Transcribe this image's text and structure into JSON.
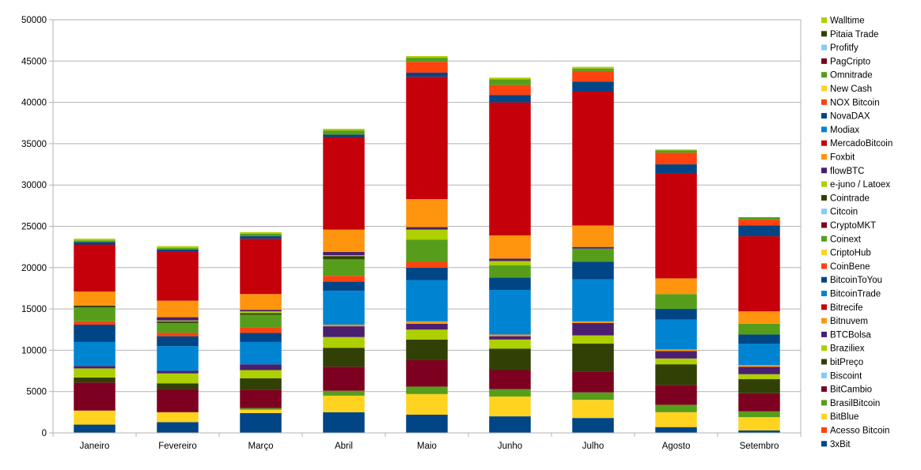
{
  "chart_data": {
    "type": "bar",
    "stacked": true,
    "title": "",
    "xlabel": "",
    "ylabel": "",
    "ylim": [
      0,
      50000
    ],
    "yticks": [
      0,
      5000,
      10000,
      15000,
      20000,
      25000,
      30000,
      35000,
      40000,
      45000,
      50000
    ],
    "grid": true,
    "legend_position": "right",
    "categories": [
      "Janeiro",
      "Fevereiro",
      "Março",
      "Abril",
      "Maio",
      "Junho",
      "Julho",
      "Agosto",
      "Setembro"
    ],
    "series": [
      {
        "name": "3xBit",
        "color": "#004586",
        "values": [
          1000,
          1300,
          2400,
          2500,
          2200,
          2000,
          1800,
          700,
          300
        ]
      },
      {
        "name": "Acesso Bitcoin",
        "color": "#ff420e",
        "values": [
          0,
          0,
          0,
          0,
          0,
          0,
          0,
          0,
          0
        ]
      },
      {
        "name": "BitBlue",
        "color": "#ffd320",
        "values": [
          1700,
          1200,
          400,
          2000,
          2500,
          2400,
          2200,
          1800,
          1600
        ]
      },
      {
        "name": "BrasilBitcoin",
        "color": "#579d1c",
        "values": [
          0,
          0,
          200,
          600,
          900,
          900,
          900,
          900,
          700
        ]
      },
      {
        "name": "BitCambio",
        "color": "#7e0021",
        "values": [
          3400,
          2800,
          2200,
          2900,
          3200,
          2300,
          2500,
          2400,
          2200
        ]
      },
      {
        "name": "Biscoint",
        "color": "#83caff",
        "values": [
          0,
          0,
          0,
          0,
          0,
          0,
          0,
          0,
          0
        ]
      },
      {
        "name": "bitPreço",
        "color": "#314004",
        "values": [
          600,
          700,
          1400,
          2300,
          2500,
          2600,
          3400,
          2500,
          1700
        ]
      },
      {
        "name": "Braziliex",
        "color": "#aecf00",
        "values": [
          1100,
          1200,
          1000,
          1300,
          1200,
          1100,
          1000,
          700,
          600
        ]
      },
      {
        "name": "BTCBolsa",
        "color": "#4b1f6f",
        "values": [
          300,
          300,
          700,
          1300,
          700,
          400,
          1500,
          900,
          900
        ]
      },
      {
        "name": "Bitnuvem",
        "color": "#ff950e",
        "values": [
          0,
          0,
          0,
          200,
          300,
          200,
          200,
          200,
          200
        ]
      },
      {
        "name": "Bitrecife",
        "color": "#c5000b",
        "values": [
          0,
          0,
          0,
          0,
          0,
          0,
          0,
          0,
          0
        ]
      },
      {
        "name": "BitcoinTrade",
        "color": "#0084d1",
        "values": [
          2900,
          3000,
          2700,
          4100,
          5000,
          5400,
          5100,
          3600,
          2600
        ]
      },
      {
        "name": "BitcoinToYou",
        "color": "#004586",
        "values": [
          2100,
          1200,
          1100,
          1100,
          1500,
          1500,
          2100,
          1300,
          1100
        ]
      },
      {
        "name": "CoinBene",
        "color": "#ff420e",
        "values": [
          400,
          400,
          700,
          700,
          700,
          0,
          0,
          0,
          0
        ]
      },
      {
        "name": "CriptoHub",
        "color": "#ffd320",
        "values": [
          0,
          0,
          0,
          0,
          0,
          0,
          0,
          0,
          0
        ]
      },
      {
        "name": "Coinext",
        "color": "#579d1c",
        "values": [
          1700,
          1200,
          1500,
          2000,
          2700,
          1500,
          1600,
          1800,
          1300
        ]
      },
      {
        "name": "CryptoMKT",
        "color": "#7e0021",
        "values": [
          0,
          0,
          0,
          0,
          0,
          0,
          0,
          0,
          0
        ]
      },
      {
        "name": "Citcoin",
        "color": "#83caff",
        "values": [
          0,
          0,
          0,
          0,
          0,
          0,
          0,
          0,
          0
        ]
      },
      {
        "name": "Cointrade",
        "color": "#314004",
        "values": [
          200,
          200,
          200,
          400,
          0,
          0,
          0,
          0,
          0
        ]
      },
      {
        "name": "e-juno / Latoex",
        "color": "#aecf00",
        "values": [
          0,
          100,
          200,
          100,
          1200,
          500,
          0,
          0,
          0
        ]
      },
      {
        "name": "flowBTC",
        "color": "#4b1f6f",
        "values": [
          0,
          400,
          200,
          400,
          300,
          300,
          200,
          0,
          0
        ]
      },
      {
        "name": "Foxbit",
        "color": "#ff950e",
        "values": [
          1700,
          2000,
          1900,
          2700,
          3400,
          2800,
          2600,
          1900,
          1500
        ]
      },
      {
        "name": "MercadoBitcoin",
        "color": "#c5000b",
        "values": [
          5700,
          5900,
          6700,
          11200,
          14800,
          16100,
          16200,
          12700,
          9100
        ]
      },
      {
        "name": "Modiax",
        "color": "#0084d1",
        "values": [
          0,
          0,
          0,
          0,
          0,
          0,
          0,
          0,
          0
        ]
      },
      {
        "name": "NovaDAX",
        "color": "#004586",
        "values": [
          300,
          300,
          300,
          300,
          500,
          900,
          1200,
          1100,
          1300
        ]
      },
      {
        "name": "NOX Bitcoin",
        "color": "#ff420e",
        "values": [
          0,
          0,
          0,
          0,
          1300,
          1200,
          1300,
          1400,
          700
        ]
      },
      {
        "name": "New Cash",
        "color": "#ffd320",
        "values": [
          0,
          0,
          0,
          0,
          0,
          0,
          0,
          0,
          0
        ]
      },
      {
        "name": "Omnitrade",
        "color": "#579d1c",
        "values": [
          200,
          200,
          300,
          500,
          500,
          700,
          300,
          300,
          300
        ]
      },
      {
        "name": "PagCripto",
        "color": "#7e0021",
        "values": [
          0,
          0,
          0,
          0,
          0,
          0,
          0,
          0,
          0
        ]
      },
      {
        "name": "Profitfy",
        "color": "#83caff",
        "values": [
          0,
          0,
          0,
          0,
          0,
          0,
          0,
          0,
          0
        ]
      },
      {
        "name": "Pitaia Trade",
        "color": "#314004",
        "values": [
          0,
          0,
          0,
          0,
          0,
          0,
          0,
          0,
          0
        ]
      },
      {
        "name": "Walltime",
        "color": "#aecf00",
        "values": [
          200,
          200,
          200,
          200,
          200,
          200,
          200,
          100,
          0
        ]
      }
    ]
  }
}
